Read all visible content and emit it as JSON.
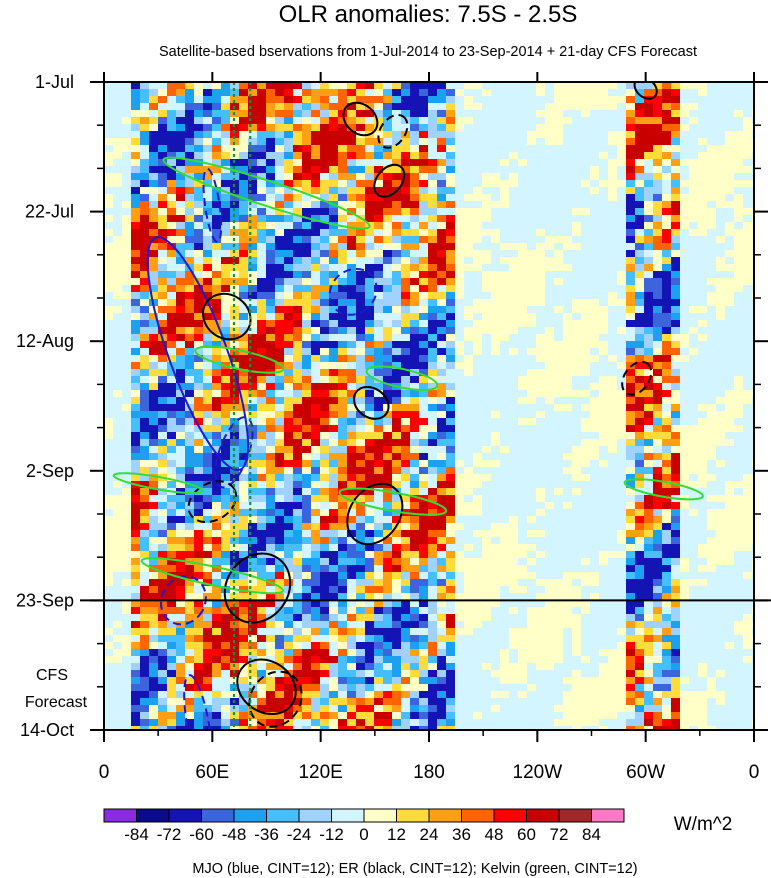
{
  "chart_data": {
    "type": "heatmap",
    "title": "OLR anomalies: 7.5S - 2.5S",
    "subtitle": "Satellite-based bservations from 1-Jul-2014 to 23-Sep-2014 + 21-day CFS Forecast",
    "x_ticks": [
      "0",
      "60E",
      "120E",
      "180",
      "120W",
      "60W",
      "0"
    ],
    "x_tick_degrees_east": [
      0,
      60,
      120,
      180,
      240,
      300,
      360
    ],
    "x_range_degrees_east": [
      0,
      360
    ],
    "y_ticks": [
      "1-Jul",
      "22-Jul",
      "12-Aug",
      "2-Sep",
      "23-Sep",
      "14-Oct"
    ],
    "y_tick_days_since_1_jul": [
      0,
      21,
      42,
      63,
      84,
      105
    ],
    "y_range_days_since_1_jul": [
      0,
      105
    ],
    "observation_end_day": 84,
    "forecast_label": [
      "CFS",
      "Forecast"
    ],
    "colorbar": {
      "levels": [
        "-84",
        "-72",
        "-60",
        "-48",
        "-36",
        "-24",
        "-12",
        "0",
        "12",
        "24",
        "36",
        "48",
        "60",
        "72",
        "84"
      ],
      "colors": [
        "#8a2be2",
        "#0a0a8c",
        "#1414b4",
        "#3c64dc",
        "#1ea0f0",
        "#46beff",
        "#a0d2ff",
        "#d2f5ff",
        "#ffffc8",
        "#ffdc3c",
        "#ffa014",
        "#ff6400",
        "#ff0000",
        "#c80000",
        "#a02828",
        "#ff78c8"
      ],
      "units": "W/m^2"
    },
    "features": [
      {
        "name": "MJO",
        "color": "#1a1ad0",
        "contour_interval": 12
      },
      {
        "name": "ER",
        "color": "#000000",
        "contour_interval": 12
      },
      {
        "name": "Kelvin",
        "color": "#33dd33",
        "contour_interval": 12
      }
    ],
    "reference_lines_deg_east": [
      72,
      81
    ],
    "reference_line_color": "#1e8c3c",
    "active_bands_deg_east": [
      [
        10,
        190
      ],
      [
        285,
        315
      ]
    ],
    "legend_caption": "MJO (blue, CINT=12); ER (black, CINT=12); Kelvin (green, CINT=12)"
  }
}
